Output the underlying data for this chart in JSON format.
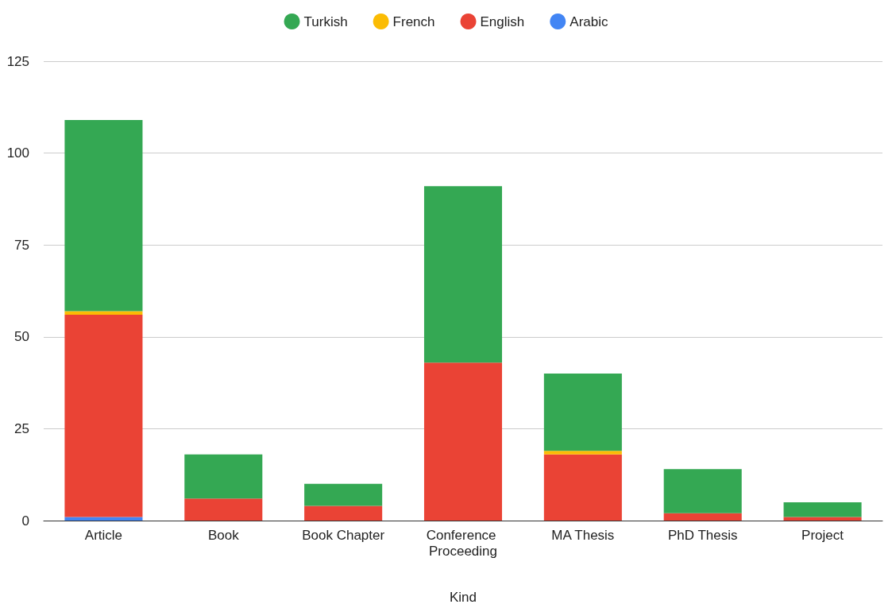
{
  "chart_data": {
    "type": "bar",
    "stacked": true,
    "xlabel": "Kind",
    "categories": [
      "Article",
      "Book",
      "Book Chapter",
      "Conference Proceeding",
      "MA Thesis",
      "PhD Thesis",
      "Project"
    ],
    "series": [
      {
        "name": "Arabic",
        "color": "#4285f4",
        "values": [
          1,
          0,
          0,
          0,
          0,
          0,
          0
        ]
      },
      {
        "name": "English",
        "color": "#ea4335",
        "values": [
          55,
          6,
          4,
          43,
          18,
          2,
          1
        ]
      },
      {
        "name": "French",
        "color": "#fbbc04",
        "values": [
          1,
          0,
          0,
          0,
          1,
          0,
          0
        ]
      },
      {
        "name": "Turkish",
        "color": "#34a853",
        "values": [
          52,
          12,
          6,
          48,
          21,
          12,
          4
        ]
      }
    ],
    "ylim": [
      0,
      125
    ],
    "yticks": [
      0,
      25,
      50,
      75,
      100,
      125
    ],
    "grid": "y",
    "legend": "top"
  }
}
